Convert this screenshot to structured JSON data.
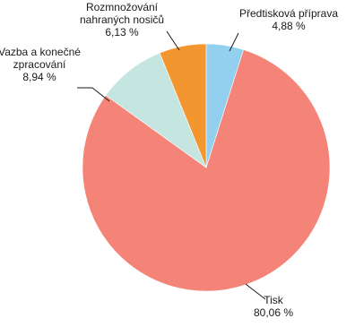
{
  "chart_data": {
    "type": "pie",
    "title": "",
    "slices": [
      {
        "name": "Předtisková příprava",
        "value": 4.88,
        "value_label": "4,88 %",
        "color": "#93cfee"
      },
      {
        "name": "Tisk",
        "value": 80.06,
        "value_label": "80,06 %",
        "color": "#f58478"
      },
      {
        "name": "Vazba a konečné zpracování",
        "value": 8.94,
        "value_label": "8,94 %",
        "color": "#c5e5e1"
      },
      {
        "name": "Rozmnožování nahraných nosičů",
        "value": 6.13,
        "value_label": "6,13 %",
        "color": "#f3962f"
      }
    ],
    "label_lines": [
      [
        "Předtisková příprava",
        "4,88 %"
      ],
      [
        "Tisk",
        "80,06 %"
      ],
      [
        "Vazba a konečné",
        "zpracování",
        "8,94 %"
      ],
      [
        "Rozmnožování",
        "nahraných nosičů",
        "6,13 %"
      ]
    ],
    "start_angle": "12 o'clock",
    "direction": "clockwise",
    "legend": "none"
  }
}
